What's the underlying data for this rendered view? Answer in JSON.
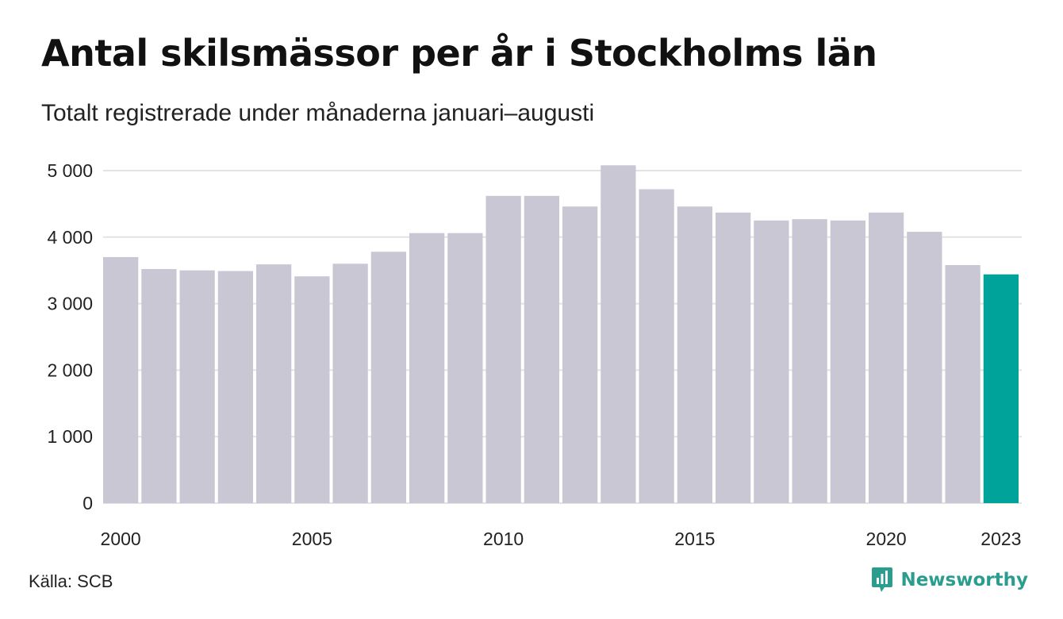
{
  "title": "Antal skilsmässor per år i Stockholms län",
  "subtitle": "Totalt registrerade under månaderna januari–augusti",
  "source": "Källa: SCB",
  "brand": {
    "name": "Newsworthy",
    "icon": "newsworthy-logo-icon",
    "color": "#2a9d8f"
  },
  "colors": {
    "bar": "#c8c7d3",
    "highlight": "#00a39a",
    "grid": "#e3e3e3"
  },
  "chart_data": {
    "type": "bar",
    "title": "Antal skilsmässor per år i Stockholms län",
    "subtitle": "Totalt registrerade under månaderna januari–augusti",
    "xlabel": "",
    "ylabel": "",
    "categories": [
      "2000",
      "2001",
      "2002",
      "2003",
      "2004",
      "2005",
      "2006",
      "2007",
      "2008",
      "2009",
      "2010",
      "2011",
      "2012",
      "2013",
      "2014",
      "2015",
      "2016",
      "2017",
      "2018",
      "2019",
      "2020",
      "2021",
      "2022",
      "2023"
    ],
    "values": [
      3700,
      3520,
      3500,
      3490,
      3590,
      3410,
      3600,
      3780,
      4060,
      4060,
      4620,
      4620,
      4460,
      5080,
      4720,
      4460,
      4370,
      4250,
      4270,
      4250,
      4370,
      4080,
      3580,
      3440
    ],
    "highlight": "2023",
    "x_tick_labels": [
      "2000",
      "2005",
      "2010",
      "2015",
      "2020",
      "2023"
    ],
    "y_ticks": [
      "0",
      "1 000",
      "2 000",
      "3 000",
      "4 000",
      "5 000"
    ],
    "y_tick_values": [
      0,
      1000,
      2000,
      3000,
      4000,
      5000
    ],
    "ylim": [
      0,
      5100
    ],
    "grid": true,
    "legend": "none"
  }
}
